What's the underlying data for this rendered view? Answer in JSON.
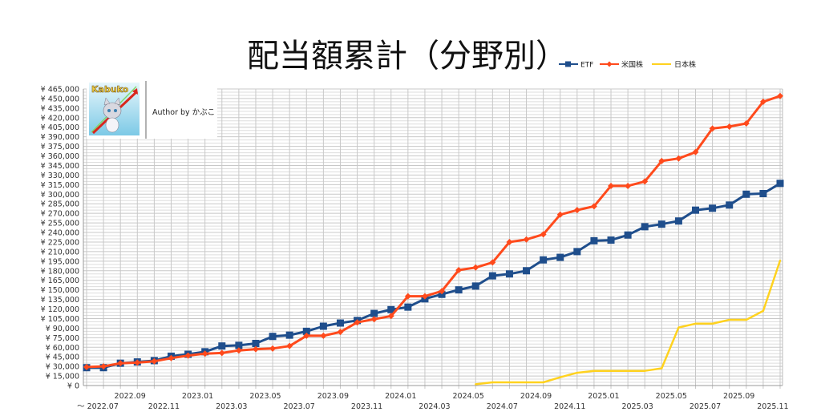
{
  "chart_data": {
    "type": "line",
    "title": "配当額累計（分野別）",
    "xlabel": "",
    "ylabel": "",
    "ylim": [
      0,
      465000
    ],
    "y_tick_step": 15000,
    "y_tick_prefix": "¥",
    "grid": true,
    "legend_position": "top-right",
    "x_first_label_prefix": "～",
    "x": [
      "2022.07",
      "2022.08",
      "2022.09",
      "2022.10",
      "2022.11",
      "2022.12",
      "2023.01",
      "2023.02",
      "2023.03",
      "2023.04",
      "2023.05",
      "2023.06",
      "2023.07",
      "2023.08",
      "2023.09",
      "2023.10",
      "2023.11",
      "2023.12",
      "2024.01",
      "2024.02",
      "2024.03",
      "2024.04",
      "2024.05",
      "2024.06",
      "2024.07",
      "2024.08",
      "2024.09",
      "2024.10",
      "2024.11",
      "2024.12",
      "2025.01",
      "2025.02",
      "2025.03",
      "2025.04",
      "2025.05",
      "2025.06",
      "2025.07",
      "2025.08",
      "2025.09",
      "2025.10",
      "2025.11",
      "2025.12"
    ],
    "x_tick_labels": [
      "2022.07",
      "2022.09",
      "2022.11",
      "2023.01",
      "2023.03",
      "2023.05",
      "2023.07",
      "2023.09",
      "2023.11",
      "2024.01",
      "2024.03",
      "2024.05",
      "2024.07",
      "2024.09",
      "2024.11",
      "2025.01",
      "2025.03",
      "2025.05",
      "2025.07",
      "2025.09",
      "2025.11"
    ],
    "series": [
      {
        "name": "ETF",
        "color": "#1f4e8c",
        "marker": "square",
        "values": [
          28000,
          28000,
          35000,
          37000,
          39000,
          46000,
          49000,
          53000,
          62000,
          63000,
          66000,
          77000,
          79000,
          85000,
          93000,
          98000,
          102000,
          113000,
          119000,
          123000,
          136000,
          143000,
          150000,
          156000,
          172000,
          175000,
          180000,
          197000,
          201000,
          210000,
          227000,
          228000,
          236000,
          249000,
          253000,
          258000,
          275000,
          278000,
          283000,
          300000,
          301000,
          317000
        ]
      },
      {
        "name": "米国株",
        "color": "#ff4a1c",
        "marker": "diamond",
        "values": [
          29000,
          30000,
          35000,
          36000,
          38000,
          43000,
          47000,
          50000,
          51000,
          55000,
          57000,
          58000,
          62000,
          78000,
          78000,
          84000,
          99000,
          104000,
          109000,
          140000,
          140000,
          148000,
          181000,
          185000,
          193000,
          225000,
          229000,
          237000,
          268000,
          275000,
          281000,
          313000,
          313000,
          320000,
          352000,
          356000,
          366000,
          403000,
          406000,
          411000,
          445000,
          454000
        ]
      },
      {
        "name": "日本株",
        "color": "#ffd21f",
        "marker": "none",
        "values": [
          null,
          null,
          null,
          null,
          null,
          null,
          null,
          null,
          null,
          null,
          null,
          null,
          null,
          null,
          null,
          null,
          null,
          null,
          null,
          null,
          null,
          null,
          null,
          2000,
          5000,
          5000,
          5000,
          5000,
          13000,
          20000,
          23000,
          23000,
          23000,
          23000,
          27000,
          91000,
          97000,
          97000,
          103000,
          103000,
          117000,
          196000
        ]
      }
    ]
  },
  "logo": {
    "brand": "Kabuko",
    "author": "Author by かぶこ"
  }
}
